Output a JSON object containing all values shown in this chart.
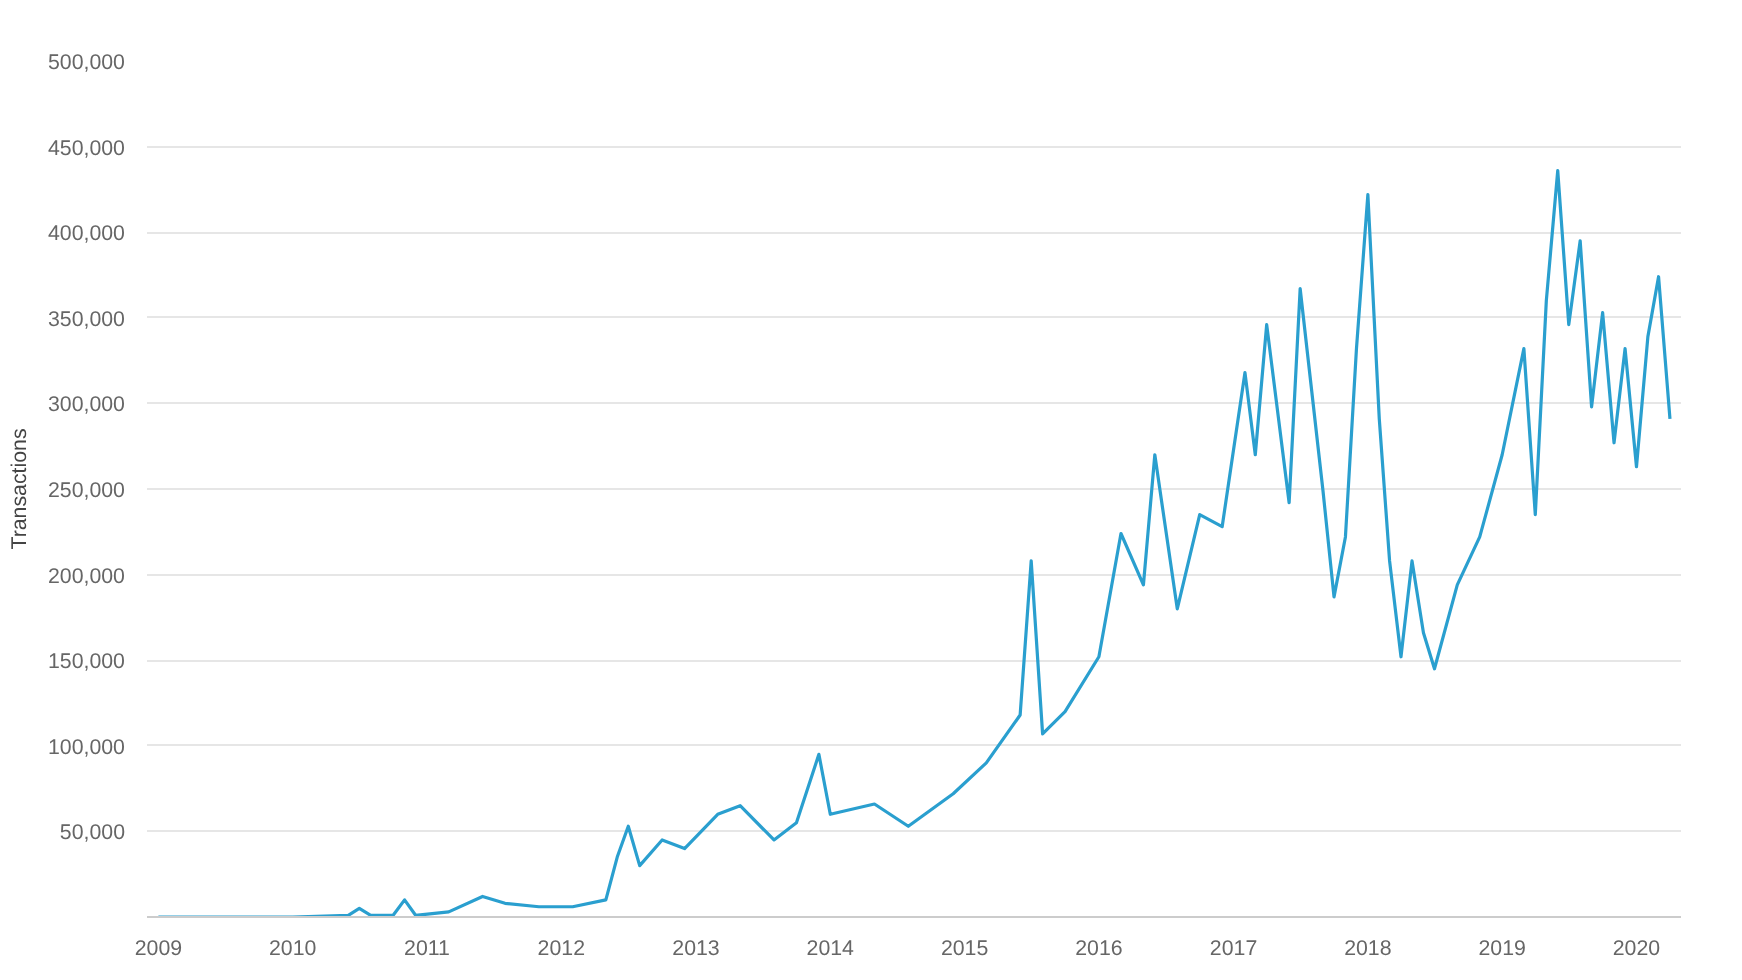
{
  "chart_data": {
    "type": "line",
    "ylabel": "Transactions",
    "grid": "y",
    "marker": "none",
    "line_style": "solid",
    "x": [
      "2009-01",
      "2009-06",
      "2010-01",
      "2010-06",
      "2010-07",
      "2010-08",
      "2010-10",
      "2010-11",
      "2010-12",
      "2011-03",
      "2011-06",
      "2011-08",
      "2011-11",
      "2012-02",
      "2012-05",
      "2012-06",
      "2012-07",
      "2012-08",
      "2012-10",
      "2012-12",
      "2013-03",
      "2013-05",
      "2013-08",
      "2013-10",
      "2013-12",
      "2014-01",
      "2014-05",
      "2014-08",
      "2014-12",
      "2015-03",
      "2015-06",
      "2015-07",
      "2015-08",
      "2015-10",
      "2016-01",
      "2016-03",
      "2016-05",
      "2016-06",
      "2016-08",
      "2016-10",
      "2016-12",
      "2017-02",
      "2017-03",
      "2017-04",
      "2017-06",
      "2017-07",
      "2017-09",
      "2017-10",
      "2017-11",
      "2017-12",
      "2018-01",
      "2018-02",
      "2018-03",
      "2018-04",
      "2018-05",
      "2018-06",
      "2018-07",
      "2018-09",
      "2018-11",
      "2019-01",
      "2019-03",
      "2019-04",
      "2019-05",
      "2019-06",
      "2019-07",
      "2019-08",
      "2019-09",
      "2019-10",
      "2019-11",
      "2019-12",
      "2020-01",
      "2020-02",
      "2020-03",
      "2020-04"
    ],
    "series": [
      {
        "color": "#2a9fcf",
        "values": [
          0,
          0,
          0,
          1000,
          5000,
          1000,
          1000,
          10000,
          1000,
          3000,
          12000,
          8000,
          6000,
          6000,
          10000,
          35000,
          53000,
          30000,
          45000,
          40000,
          60000,
          65000,
          45000,
          55000,
          95000,
          60000,
          66000,
          53000,
          72000,
          90000,
          118000,
          208000,
          107000,
          120000,
          152000,
          224000,
          194000,
          270000,
          180000,
          235000,
          228000,
          318000,
          270000,
          346000,
          242000,
          367000,
          249000,
          187000,
          222000,
          332000,
          422000,
          291000,
          208000,
          152000,
          208000,
          166000,
          145000,
          194000,
          222000,
          270000,
          332000,
          235000,
          360000,
          436000,
          346000,
          395000,
          298000,
          353000,
          277000,
          332000,
          263000,
          339000,
          374000,
          291000
        ]
      }
    ],
    "xlim": [
      "2008-12",
      "2020-05"
    ],
    "xticks": [
      {
        "value": "2009",
        "label": "2009"
      },
      {
        "value": "2010",
        "label": "2010"
      },
      {
        "value": "2011",
        "label": "2011"
      },
      {
        "value": "2012",
        "label": "2012"
      },
      {
        "value": "2013",
        "label": "2013"
      },
      {
        "value": "2014",
        "label": "2014"
      },
      {
        "value": "2015",
        "label": "2015"
      },
      {
        "value": "2016",
        "label": "2016"
      },
      {
        "value": "2017",
        "label": "2017"
      },
      {
        "value": "2018",
        "label": "2018"
      },
      {
        "value": "2019",
        "label": "2019"
      },
      {
        "value": "2020",
        "label": "2020"
      }
    ],
    "ylim": [
      0,
      500000
    ],
    "yticks": [
      {
        "value": 50000,
        "label": "50,000"
      },
      {
        "value": 100000,
        "label": "100,000"
      },
      {
        "value": 150000,
        "label": "150,000"
      },
      {
        "value": 200000,
        "label": "200,000"
      },
      {
        "value": 250000,
        "label": "250,000"
      },
      {
        "value": 300000,
        "label": "300,000"
      },
      {
        "value": 350000,
        "label": "350,000"
      },
      {
        "value": 400000,
        "label": "400,000"
      },
      {
        "value": 450000,
        "label": "450,000"
      },
      {
        "value": 500000,
        "label": "500,000"
      }
    ]
  }
}
